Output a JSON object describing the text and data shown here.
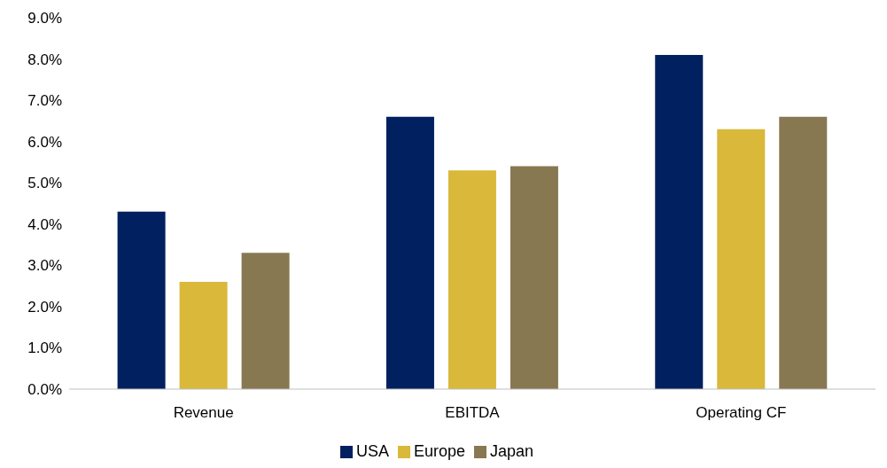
{
  "chart_data": {
    "type": "bar",
    "categories": [
      "Revenue",
      "EBITDA",
      "Operating CF"
    ],
    "series": [
      {
        "name": "USA",
        "color": "#002060",
        "values": [
          4.3,
          6.6,
          8.1
        ]
      },
      {
        "name": "Europe",
        "color": "#d9b83a",
        "values": [
          2.6,
          5.3,
          6.3
        ]
      },
      {
        "name": "Japan",
        "color": "#877852",
        "values": [
          3.3,
          5.4,
          6.6
        ]
      }
    ],
    "ylim": [
      0,
      9
    ],
    "yticks": [
      {
        "value": 0,
        "label": "0.0%"
      },
      {
        "value": 1,
        "label": "1.0%"
      },
      {
        "value": 2,
        "label": "2.0%"
      },
      {
        "value": 3,
        "label": "3.0%"
      },
      {
        "value": 4,
        "label": "4.0%"
      },
      {
        "value": 5,
        "label": "5.0%"
      },
      {
        "value": 6,
        "label": "6.0%"
      },
      {
        "value": 7,
        "label": "7.0%"
      },
      {
        "value": 8,
        "label": "8.0%"
      },
      {
        "value": 9,
        "label": "9.0%"
      }
    ],
    "grid": false,
    "legend": "bottom"
  }
}
